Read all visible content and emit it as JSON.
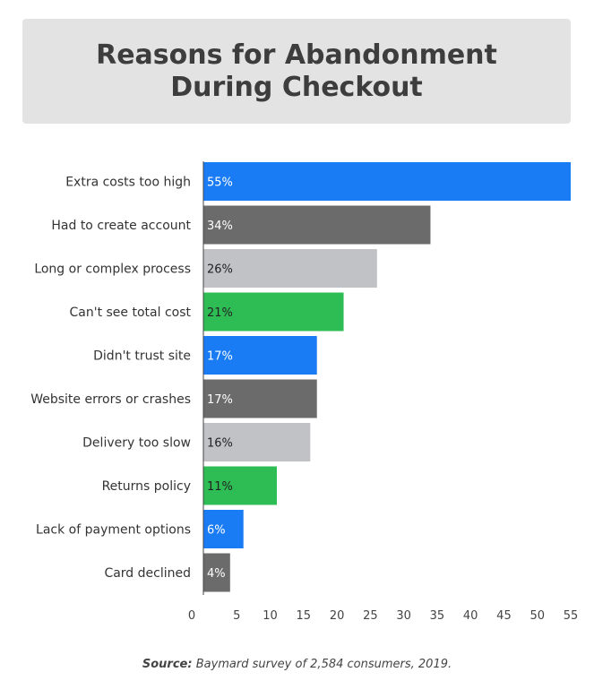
{
  "chart_data": {
    "type": "bar",
    "orientation": "horizontal",
    "title": "Reasons for Abandonment During Checkout",
    "categories": [
      "Extra costs too high",
      "Had to create account",
      "Long or complex process",
      "Can't see total cost",
      "Didn't trust site",
      "Website errors or crashes",
      "Delivery too slow",
      "Returns policy",
      "Lack of payment options",
      "Card declined"
    ],
    "values": [
      55,
      34,
      26,
      21,
      17,
      17,
      16,
      11,
      6,
      4
    ],
    "value_labels": [
      "55%",
      "34%",
      "26%",
      "21%",
      "17%",
      "17%",
      "16%",
      "11%",
      "6%",
      "4%"
    ],
    "bar_colors": [
      "#1a7cf4",
      "#6b6b6b",
      "#c0c2c5",
      "#2dbd54",
      "#1a7cf4",
      "#6b6b6b",
      "#c0c2c5",
      "#2dbd54",
      "#1a7cf4",
      "#6b6b6b"
    ],
    "label_colors": [
      "#ffffff",
      "#ffffff",
      "#222222",
      "#222222",
      "#ffffff",
      "#ffffff",
      "#222222",
      "#222222",
      "#ffffff",
      "#ffffff"
    ],
    "xticks": [
      0,
      5,
      10,
      15,
      20,
      25,
      30,
      35,
      40,
      45,
      50,
      55
    ],
    "xlim": [
      0,
      55
    ],
    "xlabel": "",
    "ylabel": "",
    "grid": false,
    "source_label": "Source:",
    "source_text": "Baymard survey of 2,584 consumers, 2019."
  }
}
